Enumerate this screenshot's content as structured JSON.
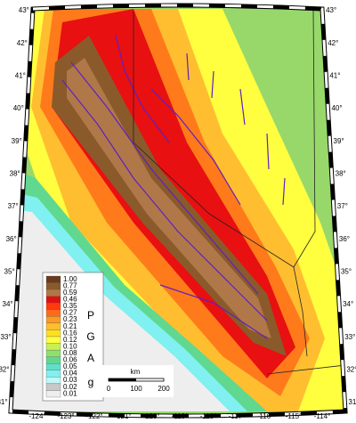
{
  "map": {
    "lat_labels_left": [
      "43°",
      "42°",
      "41°",
      "40°",
      "39°",
      "38°",
      "37°",
      "36°",
      "35°",
      "34°",
      "33°",
      "32°",
      "31°"
    ],
    "lat_labels_right": [
      "43°",
      "42°",
      "41°",
      "40°",
      "39°",
      "38°",
      "37°",
      "36°",
      "35°",
      "34°",
      "33°",
      "32°",
      "31°"
    ],
    "lon_labels": [
      "-124°",
      "-123°",
      "-122°",
      "-121°",
      "-120°",
      "-119°",
      "-118°",
      "-117°",
      "-116°",
      "-115°",
      "-114°"
    ],
    "legend": {
      "title_letters": [
        "P",
        "G",
        "A"
      ],
      "unit": "g",
      "values": [
        "1.00",
        "0.77",
        "0.59",
        "0.46",
        "0.35",
        "0.27",
        "0.23",
        "0.21",
        "0.16",
        "0.12",
        "0.10",
        "0.08",
        "0.06",
        "0.05",
        "0.04",
        "0.03",
        "0.02",
        "0.01"
      ],
      "colors": [
        "#6b3a1a",
        "#8b5a2b",
        "#b07848",
        "#e01010",
        "#ff3a10",
        "#ff6a1a",
        "#ff9a20",
        "#ffbe30",
        "#ffe020",
        "#ffff40",
        "#c8f050",
        "#90e070",
        "#60d890",
        "#60e0c8",
        "#80f0f0",
        "#c0f8f8",
        "#c8c8c8",
        "#eeeeee"
      ]
    },
    "scale_bar": {
      "unit": "km",
      "labels": [
        "0",
        "100",
        "200"
      ]
    }
  }
}
